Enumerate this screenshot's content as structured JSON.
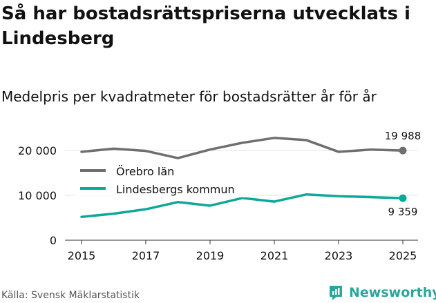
{
  "page": {
    "title": "Så har bostadsrättspriserna utvecklats i Lindesberg",
    "subtitle": "Medelpris per kvadratmeter för bostadsrätter år för år",
    "source": "Källa: Svensk Mäklarstatistik",
    "brand": "Newsworthy"
  },
  "colors": {
    "orebro": "#6e6e73",
    "lindesberg": "#0ea89a",
    "grid": "#e3e3e3",
    "axis": "#333333",
    "brand": "#2aa69d"
  },
  "chart_data": {
    "type": "line",
    "title": "Så har bostadsrättspriserna utvecklats i Lindesberg",
    "subtitle": "Medelpris per kvadratmeter för bostadsrätter år för år",
    "xlabel": "",
    "ylabel": "",
    "x": [
      2015,
      2016,
      2017,
      2018,
      2019,
      2020,
      2021,
      2022,
      2023,
      2024,
      2025
    ],
    "xticks": [
      2015,
      2017,
      2019,
      2021,
      2023,
      2025
    ],
    "xtick_labels": [
      "2015",
      "2017",
      "2019",
      "2021",
      "2023",
      "2025"
    ],
    "xlim": [
      2015,
      2025
    ],
    "ylim": [
      0,
      22000
    ],
    "yticks": [
      0,
      10000,
      20000
    ],
    "ytick_labels": [
      "0",
      "10 000",
      "20 000"
    ],
    "grid": true,
    "legend_position": "upper-left",
    "series": [
      {
        "name": "Örebro län",
        "values": [
          19700,
          20400,
          19900,
          18300,
          20200,
          21700,
          22800,
          22300,
          19700,
          20200,
          19988
        ],
        "end_label": "19 988"
      },
      {
        "name": "Lindesbergs kommun",
        "values": [
          5200,
          5900,
          6900,
          8500,
          7700,
          9400,
          8600,
          10200,
          9800,
          9600,
          9359
        ],
        "end_label": "9 359"
      }
    ]
  }
}
